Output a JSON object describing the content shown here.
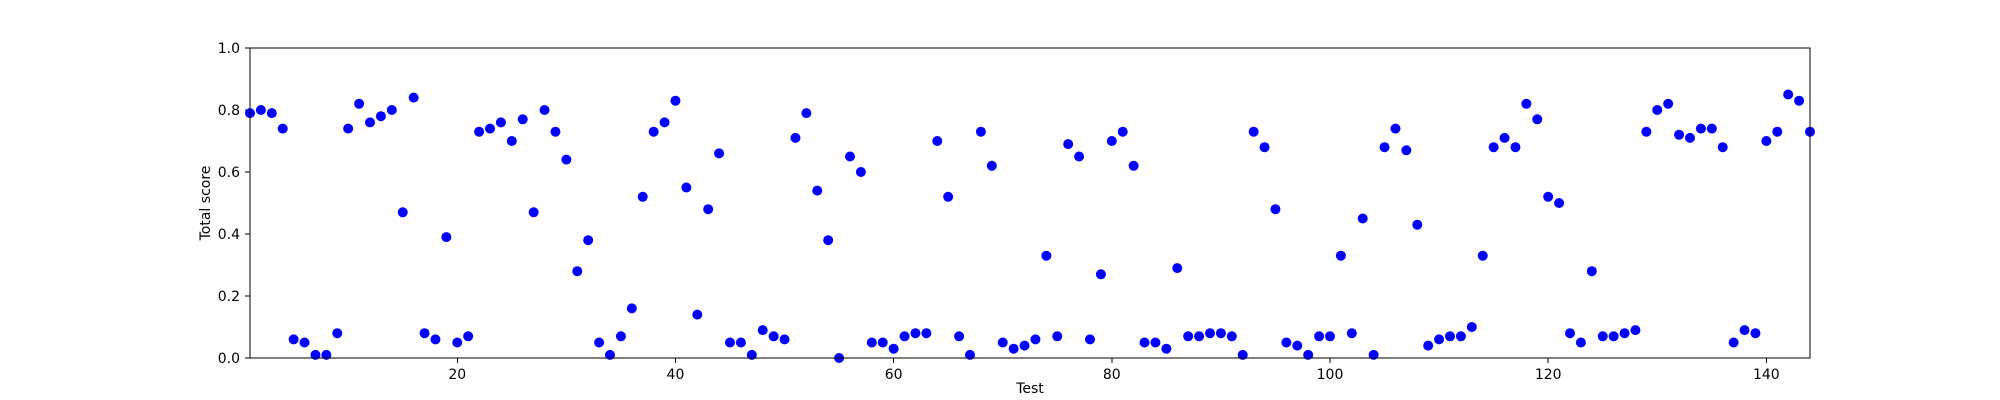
{
  "chart_data": {
    "type": "scatter",
    "xlabel": "Test",
    "ylabel": "Total score",
    "xlim": [
      1,
      144
    ],
    "ylim": [
      0.0,
      1.0
    ],
    "x_ticks": [
      20,
      40,
      60,
      80,
      100,
      120,
      140
    ],
    "y_ticks": [
      0.0,
      0.2,
      0.4,
      0.6,
      0.8,
      1.0
    ],
    "x_tick_labels": [
      "20",
      "40",
      "60",
      "80",
      "100",
      "120",
      "140"
    ],
    "y_tick_labels": [
      "0.0",
      "0.2",
      "0.4",
      "0.6",
      "0.8",
      "1.0"
    ],
    "grid": false,
    "marker_color": "#0000ff",
    "points": [
      [
        1,
        0.79
      ],
      [
        2,
        0.8
      ],
      [
        3,
        0.79
      ],
      [
        4,
        0.74
      ],
      [
        5,
        0.06
      ],
      [
        6,
        0.05
      ],
      [
        7,
        0.01
      ],
      [
        8,
        0.01
      ],
      [
        9,
        0.08
      ],
      [
        10,
        0.74
      ],
      [
        11,
        0.82
      ],
      [
        12,
        0.76
      ],
      [
        13,
        0.78
      ],
      [
        14,
        0.8
      ],
      [
        15,
        0.47
      ],
      [
        16,
        0.84
      ],
      [
        17,
        0.08
      ],
      [
        18,
        0.06
      ],
      [
        19,
        0.39
      ],
      [
        20,
        0.05
      ],
      [
        21,
        0.07
      ],
      [
        22,
        0.73
      ],
      [
        23,
        0.74
      ],
      [
        24,
        0.76
      ],
      [
        25,
        0.7
      ],
      [
        26,
        0.77
      ],
      [
        27,
        0.47
      ],
      [
        28,
        0.8
      ],
      [
        29,
        0.73
      ],
      [
        30,
        0.64
      ],
      [
        31,
        0.28
      ],
      [
        32,
        0.38
      ],
      [
        33,
        0.05
      ],
      [
        34,
        0.01
      ],
      [
        35,
        0.07
      ],
      [
        36,
        0.16
      ],
      [
        37,
        0.52
      ],
      [
        38,
        0.73
      ],
      [
        39,
        0.76
      ],
      [
        40,
        0.83
      ],
      [
        41,
        0.55
      ],
      [
        42,
        0.14
      ],
      [
        43,
        0.48
      ],
      [
        44,
        0.66
      ],
      [
        45,
        0.05
      ],
      [
        46,
        0.05
      ],
      [
        47,
        0.01
      ],
      [
        48,
        0.09
      ],
      [
        49,
        0.07
      ],
      [
        50,
        0.06
      ],
      [
        51,
        0.71
      ],
      [
        52,
        0.79
      ],
      [
        53,
        0.54
      ],
      [
        54,
        0.38
      ],
      [
        55,
        0.0
      ],
      [
        56,
        0.65
      ],
      [
        57,
        0.6
      ],
      [
        58,
        0.05
      ],
      [
        59,
        0.05
      ],
      [
        60,
        0.03
      ],
      [
        61,
        0.07
      ],
      [
        62,
        0.08
      ],
      [
        63,
        0.08
      ],
      [
        64,
        0.7
      ],
      [
        65,
        0.52
      ],
      [
        66,
        0.07
      ],
      [
        67,
        0.01
      ],
      [
        68,
        0.73
      ],
      [
        69,
        0.62
      ],
      [
        70,
        0.05
      ],
      [
        71,
        0.03
      ],
      [
        72,
        0.04
      ],
      [
        73,
        0.06
      ],
      [
        74,
        0.33
      ],
      [
        75,
        0.07
      ],
      [
        76,
        0.69
      ],
      [
        77,
        0.65
      ],
      [
        78,
        0.06
      ],
      [
        79,
        0.27
      ],
      [
        80,
        0.7
      ],
      [
        81,
        0.73
      ],
      [
        82,
        0.62
      ],
      [
        83,
        0.05
      ],
      [
        84,
        0.05
      ],
      [
        85,
        0.03
      ],
      [
        86,
        0.29
      ],
      [
        87,
        0.07
      ],
      [
        88,
        0.07
      ],
      [
        89,
        0.08
      ],
      [
        90,
        0.08
      ],
      [
        91,
        0.07
      ],
      [
        92,
        0.01
      ],
      [
        93,
        0.73
      ],
      [
        94,
        0.68
      ],
      [
        95,
        0.48
      ],
      [
        96,
        0.05
      ],
      [
        97,
        0.04
      ],
      [
        98,
        0.01
      ],
      [
        99,
        0.07
      ],
      [
        100,
        0.07
      ],
      [
        101,
        0.33
      ],
      [
        102,
        0.08
      ],
      [
        103,
        0.45
      ],
      [
        104,
        0.01
      ],
      [
        105,
        0.68
      ],
      [
        106,
        0.74
      ],
      [
        107,
        0.67
      ],
      [
        108,
        0.43
      ],
      [
        109,
        0.04
      ],
      [
        110,
        0.06
      ],
      [
        111,
        0.07
      ],
      [
        112,
        0.07
      ],
      [
        113,
        0.1
      ],
      [
        114,
        0.33
      ],
      [
        115,
        0.68
      ],
      [
        116,
        0.71
      ],
      [
        117,
        0.68
      ],
      [
        118,
        0.82
      ],
      [
        119,
        0.77
      ],
      [
        120,
        0.52
      ],
      [
        121,
        0.5
      ],
      [
        122,
        0.08
      ],
      [
        123,
        0.05
      ],
      [
        124,
        0.28
      ],
      [
        125,
        0.07
      ],
      [
        126,
        0.07
      ],
      [
        127,
        0.08
      ],
      [
        128,
        0.09
      ],
      [
        129,
        0.73
      ],
      [
        130,
        0.8
      ],
      [
        131,
        0.82
      ],
      [
        132,
        0.72
      ],
      [
        133,
        0.71
      ],
      [
        134,
        0.74
      ],
      [
        135,
        0.74
      ],
      [
        136,
        0.68
      ],
      [
        137,
        0.05
      ],
      [
        138,
        0.09
      ],
      [
        139,
        0.08
      ],
      [
        140,
        0.7
      ],
      [
        141,
        0.73
      ],
      [
        142,
        0.85
      ],
      [
        143,
        0.83
      ],
      [
        144,
        0.73
      ]
    ]
  }
}
